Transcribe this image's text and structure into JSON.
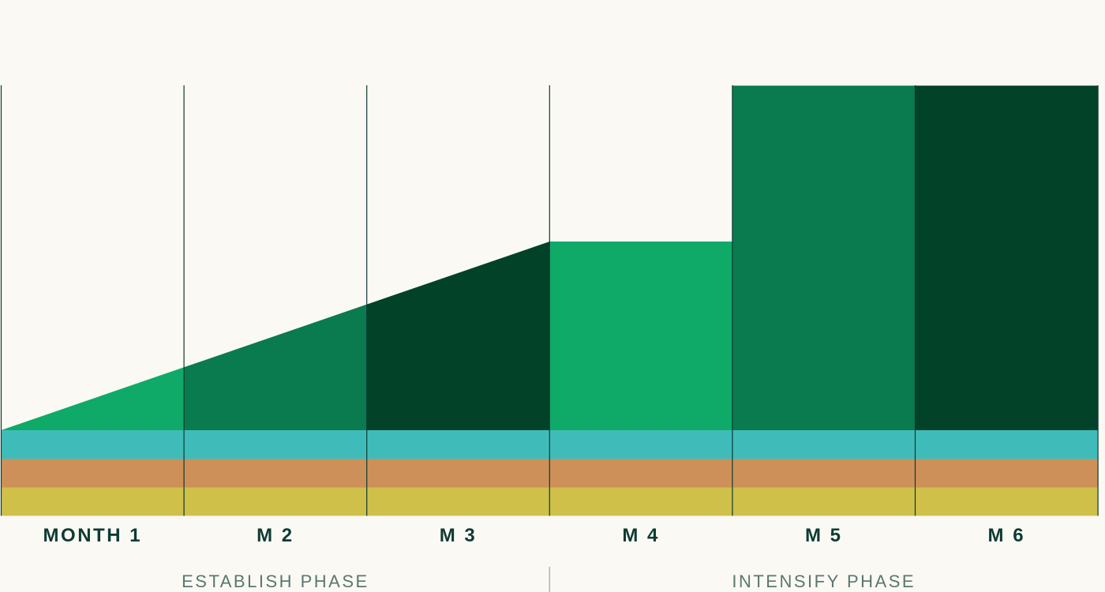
{
  "chart_data": {
    "type": "area",
    "categories": [
      "MONTH 1",
      "M 2",
      "M 3",
      "M 4",
      "M 5",
      "M 6"
    ],
    "ylim": [
      0,
      1
    ],
    "base_layers": [
      {
        "color": "#3fbcb9",
        "value": 0.067
      },
      {
        "color": "#ce9059",
        "value": 0.066
      },
      {
        "color": "#cfc04a",
        "value": 0.066
      }
    ],
    "top_segments": [
      {
        "shape": "ramp",
        "start": 0.0,
        "end": 0.146,
        "color": "#0fa968"
      },
      {
        "shape": "ramp",
        "start": 0.146,
        "end": 0.292,
        "color": "#0a7a4f"
      },
      {
        "shape": "ramp",
        "start": 0.292,
        "end": 0.438,
        "color": "#024228"
      },
      {
        "shape": "block",
        "value": 0.438,
        "color": "#0fa968"
      },
      {
        "shape": "block",
        "value": 0.8,
        "color": "#0a7a4f"
      },
      {
        "shape": "block",
        "value": 0.8,
        "color": "#024228"
      }
    ],
    "phases": [
      {
        "label": "ESTABLISH PHASE",
        "start": 0,
        "end": 3
      },
      {
        "label": "INTENSIFY PHASE",
        "start": 3,
        "end": 6
      }
    ],
    "grid": true,
    "gridline_color": "#0d3b33"
  }
}
